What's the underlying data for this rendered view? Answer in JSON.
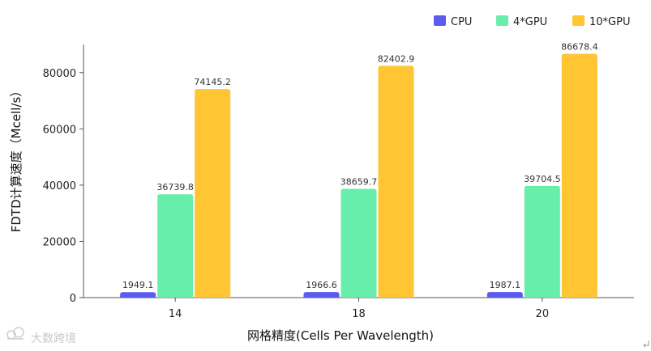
{
  "chart_data": {
    "type": "bar",
    "categories": [
      "14",
      "18",
      "20"
    ],
    "series": [
      {
        "name": "CPU",
        "color": "#5b5bf0",
        "values": [
          1949.1,
          1966.6,
          1987.1
        ],
        "labels": [
          "1949.1",
          "1966.6",
          "1987.1"
        ]
      },
      {
        "name": "4*GPU",
        "color": "#66eeaa",
        "values": [
          36739.8,
          38659.7,
          39704.5
        ],
        "labels": [
          "36739.8",
          "38659.7",
          "39704.5"
        ]
      },
      {
        "name": "10*GPU",
        "color": "#ffc533",
        "values": [
          74145.2,
          82402.9,
          86678.4
        ],
        "labels": [
          "74145.2",
          "82402.9",
          "86678.4"
        ]
      }
    ],
    "xlabel": "网格精度(Cells Per Wavelength)",
    "ylabel": "FDTD计算速度（Mcell/s）",
    "yticks": [
      "0",
      "20000",
      "40000",
      "60000",
      "80000"
    ],
    "ylim": [
      0,
      90000
    ],
    "grid": false,
    "legend_position": "top-right"
  },
  "watermark": {
    "text": "大数跨境",
    "icon": "cloud-logo-icon"
  },
  "corner_mark": {
    "icon": "return-arrow-icon"
  }
}
